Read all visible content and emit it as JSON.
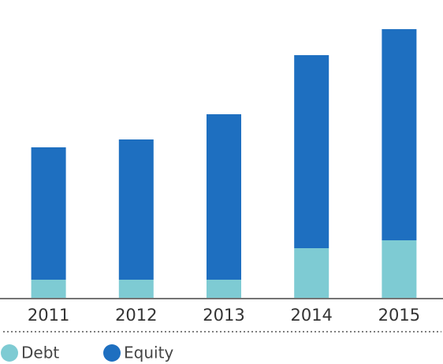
{
  "chart_data": {
    "type": "stacked-bar",
    "categories": [
      "2011",
      "2012",
      "2013",
      "2014",
      "2015"
    ],
    "series": [
      {
        "name": "Debt",
        "color": "#7ecbd3",
        "values": [
          23,
          23,
          23,
          63,
          73
        ]
      },
      {
        "name": "Equity",
        "color": "#1e6fc0",
        "values": [
          168,
          178,
          210,
          245,
          268
        ]
      }
    ],
    "ylim": [
      0,
      341
    ]
  }
}
